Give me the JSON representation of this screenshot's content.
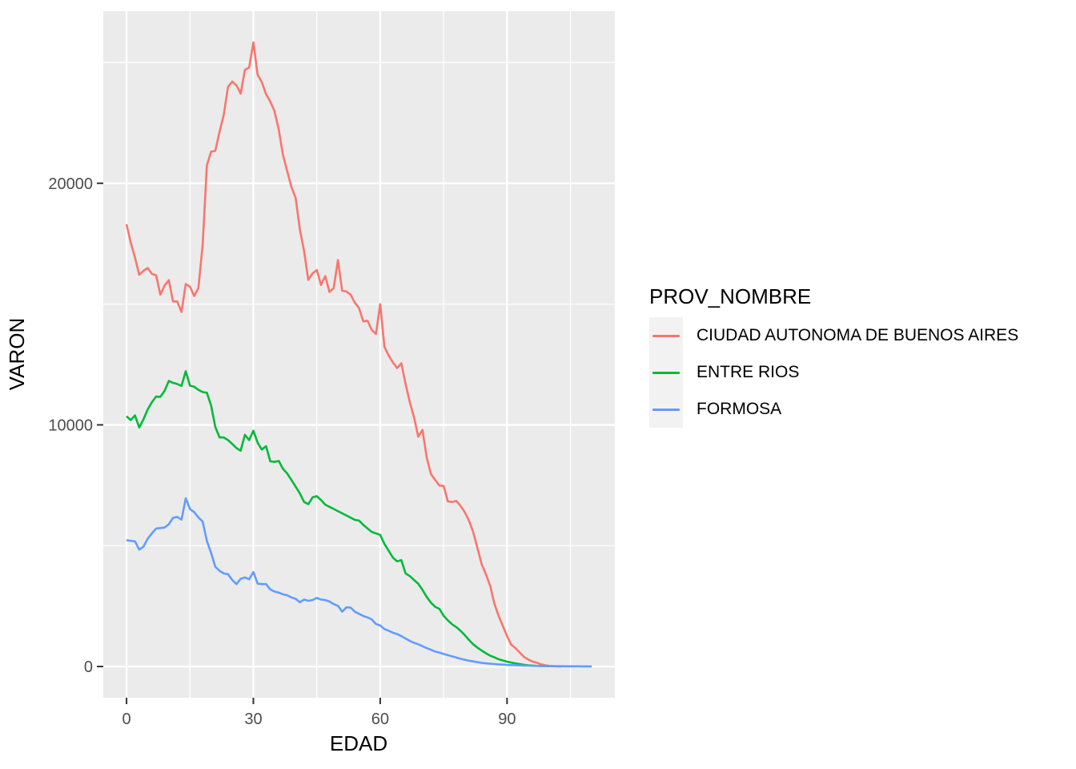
{
  "figure": {
    "background": "#FFFFFF",
    "panel_background": "#EBEBEB",
    "grid_color": "#FFFFFF",
    "axis_text_color": "#4D4D4D",
    "axis_title_color": "#000000",
    "tick_color": "#333333",
    "legend_key_background": "#F2F2F2"
  },
  "chart_data": {
    "type": "line",
    "title": "",
    "xlabel": "EDAD",
    "ylabel": "VARON",
    "legend_title": "PROV_NOMBRE",
    "legend_position": "right",
    "grid": true,
    "xlim": [
      -5.5,
      115.5
    ],
    "ylim": [
      -1291,
      27120
    ],
    "x_major_ticks": [
      0,
      30,
      60,
      90
    ],
    "x_minor_gridlines": [
      15,
      45,
      75,
      105
    ],
    "y_major_ticks": [
      0,
      10000,
      20000
    ],
    "y_minor_gridlines": [
      5000,
      15000,
      25000
    ],
    "x_start": 0,
    "x_step": 1,
    "series": [
      {
        "name": "CIUDAD AUTONOMA DE BUENOS AIRES",
        "color": "#F8766D",
        "values": [
          18300,
          17550,
          16930,
          16210,
          16380,
          16490,
          16250,
          16190,
          15390,
          15770,
          15990,
          15110,
          15110,
          14670,
          15830,
          15720,
          15330,
          15660,
          17430,
          20740,
          21310,
          21340,
          22120,
          22830,
          23990,
          24210,
          24050,
          23710,
          24690,
          24790,
          25830,
          24490,
          24190,
          23690,
          23380,
          22980,
          22220,
          21180,
          20510,
          19850,
          19390,
          18080,
          17200,
          16000,
          16270,
          16410,
          15790,
          16160,
          15500,
          15660,
          16820,
          15550,
          15520,
          15390,
          15060,
          14830,
          14280,
          14310,
          13930,
          13760,
          15000,
          13230,
          12870,
          12590,
          12350,
          12550,
          11690,
          10940,
          10310,
          9510,
          9790,
          8650,
          7960,
          7720,
          7490,
          7470,
          6830,
          6810,
          6850,
          6650,
          6390,
          6040,
          5560,
          4900,
          4240,
          3820,
          3350,
          2600,
          2100,
          1680,
          1260,
          900,
          760,
          580,
          400,
          290,
          210,
          160,
          90,
          50,
          25,
          12,
          6,
          3,
          null,
          null,
          null,
          null,
          null,
          null,
          null
        ]
      },
      {
        "name": "ENTRE RIOS",
        "color": "#00BA38",
        "values": [
          10360,
          10200,
          10390,
          9890,
          10230,
          10640,
          10940,
          11170,
          11160,
          11410,
          11820,
          11740,
          11690,
          11610,
          12220,
          11620,
          11580,
          11450,
          11360,
          11330,
          10800,
          9920,
          9480,
          9480,
          9370,
          9210,
          9040,
          8930,
          9590,
          9370,
          9760,
          9260,
          8980,
          9120,
          8490,
          8470,
          8510,
          8180,
          7990,
          7720,
          7440,
          7160,
          6810,
          6720,
          7000,
          7050,
          6890,
          6700,
          6610,
          6520,
          6430,
          6340,
          6250,
          6160,
          6070,
          6040,
          5860,
          5710,
          5570,
          5510,
          5450,
          5070,
          4790,
          4510,
          4350,
          4400,
          3850,
          3740,
          3580,
          3430,
          3170,
          2880,
          2640,
          2470,
          2390,
          2100,
          1910,
          1750,
          1630,
          1480,
          1300,
          1100,
          920,
          780,
          660,
          550,
          450,
          380,
          300,
          250,
          200,
          160,
          130,
          100,
          70,
          50,
          40,
          30,
          25,
          20,
          15,
          null,
          null,
          null,
          null,
          null,
          null,
          null,
          null,
          null,
          null
        ]
      },
      {
        "name": "FORMOSA",
        "color": "#619CFF",
        "values": [
          5230,
          5200,
          5180,
          4840,
          4960,
          5290,
          5510,
          5710,
          5730,
          5750,
          5890,
          6150,
          6190,
          6080,
          6960,
          6520,
          6390,
          6170,
          6000,
          5200,
          4700,
          4130,
          3960,
          3850,
          3820,
          3580,
          3410,
          3630,
          3690,
          3610,
          3910,
          3430,
          3410,
          3410,
          3190,
          3100,
          3060,
          2990,
          2950,
          2860,
          2800,
          2660,
          2770,
          2720,
          2750,
          2840,
          2770,
          2750,
          2690,
          2580,
          2510,
          2270,
          2450,
          2440,
          2270,
          2180,
          2090,
          2030,
          1950,
          1760,
          1700,
          1550,
          1480,
          1400,
          1340,
          1260,
          1160,
          1060,
          980,
          920,
          840,
          760,
          690,
          620,
          580,
          520,
          470,
          420,
          370,
          320,
          280,
          240,
          210,
          180,
          150,
          130,
          115,
          100,
          88,
          77,
          66,
          58,
          50,
          45,
          40,
          35,
          30,
          26,
          22,
          20,
          17,
          15,
          13,
          11,
          10,
          9,
          8,
          7,
          6,
          6,
          5
        ]
      }
    ]
  }
}
